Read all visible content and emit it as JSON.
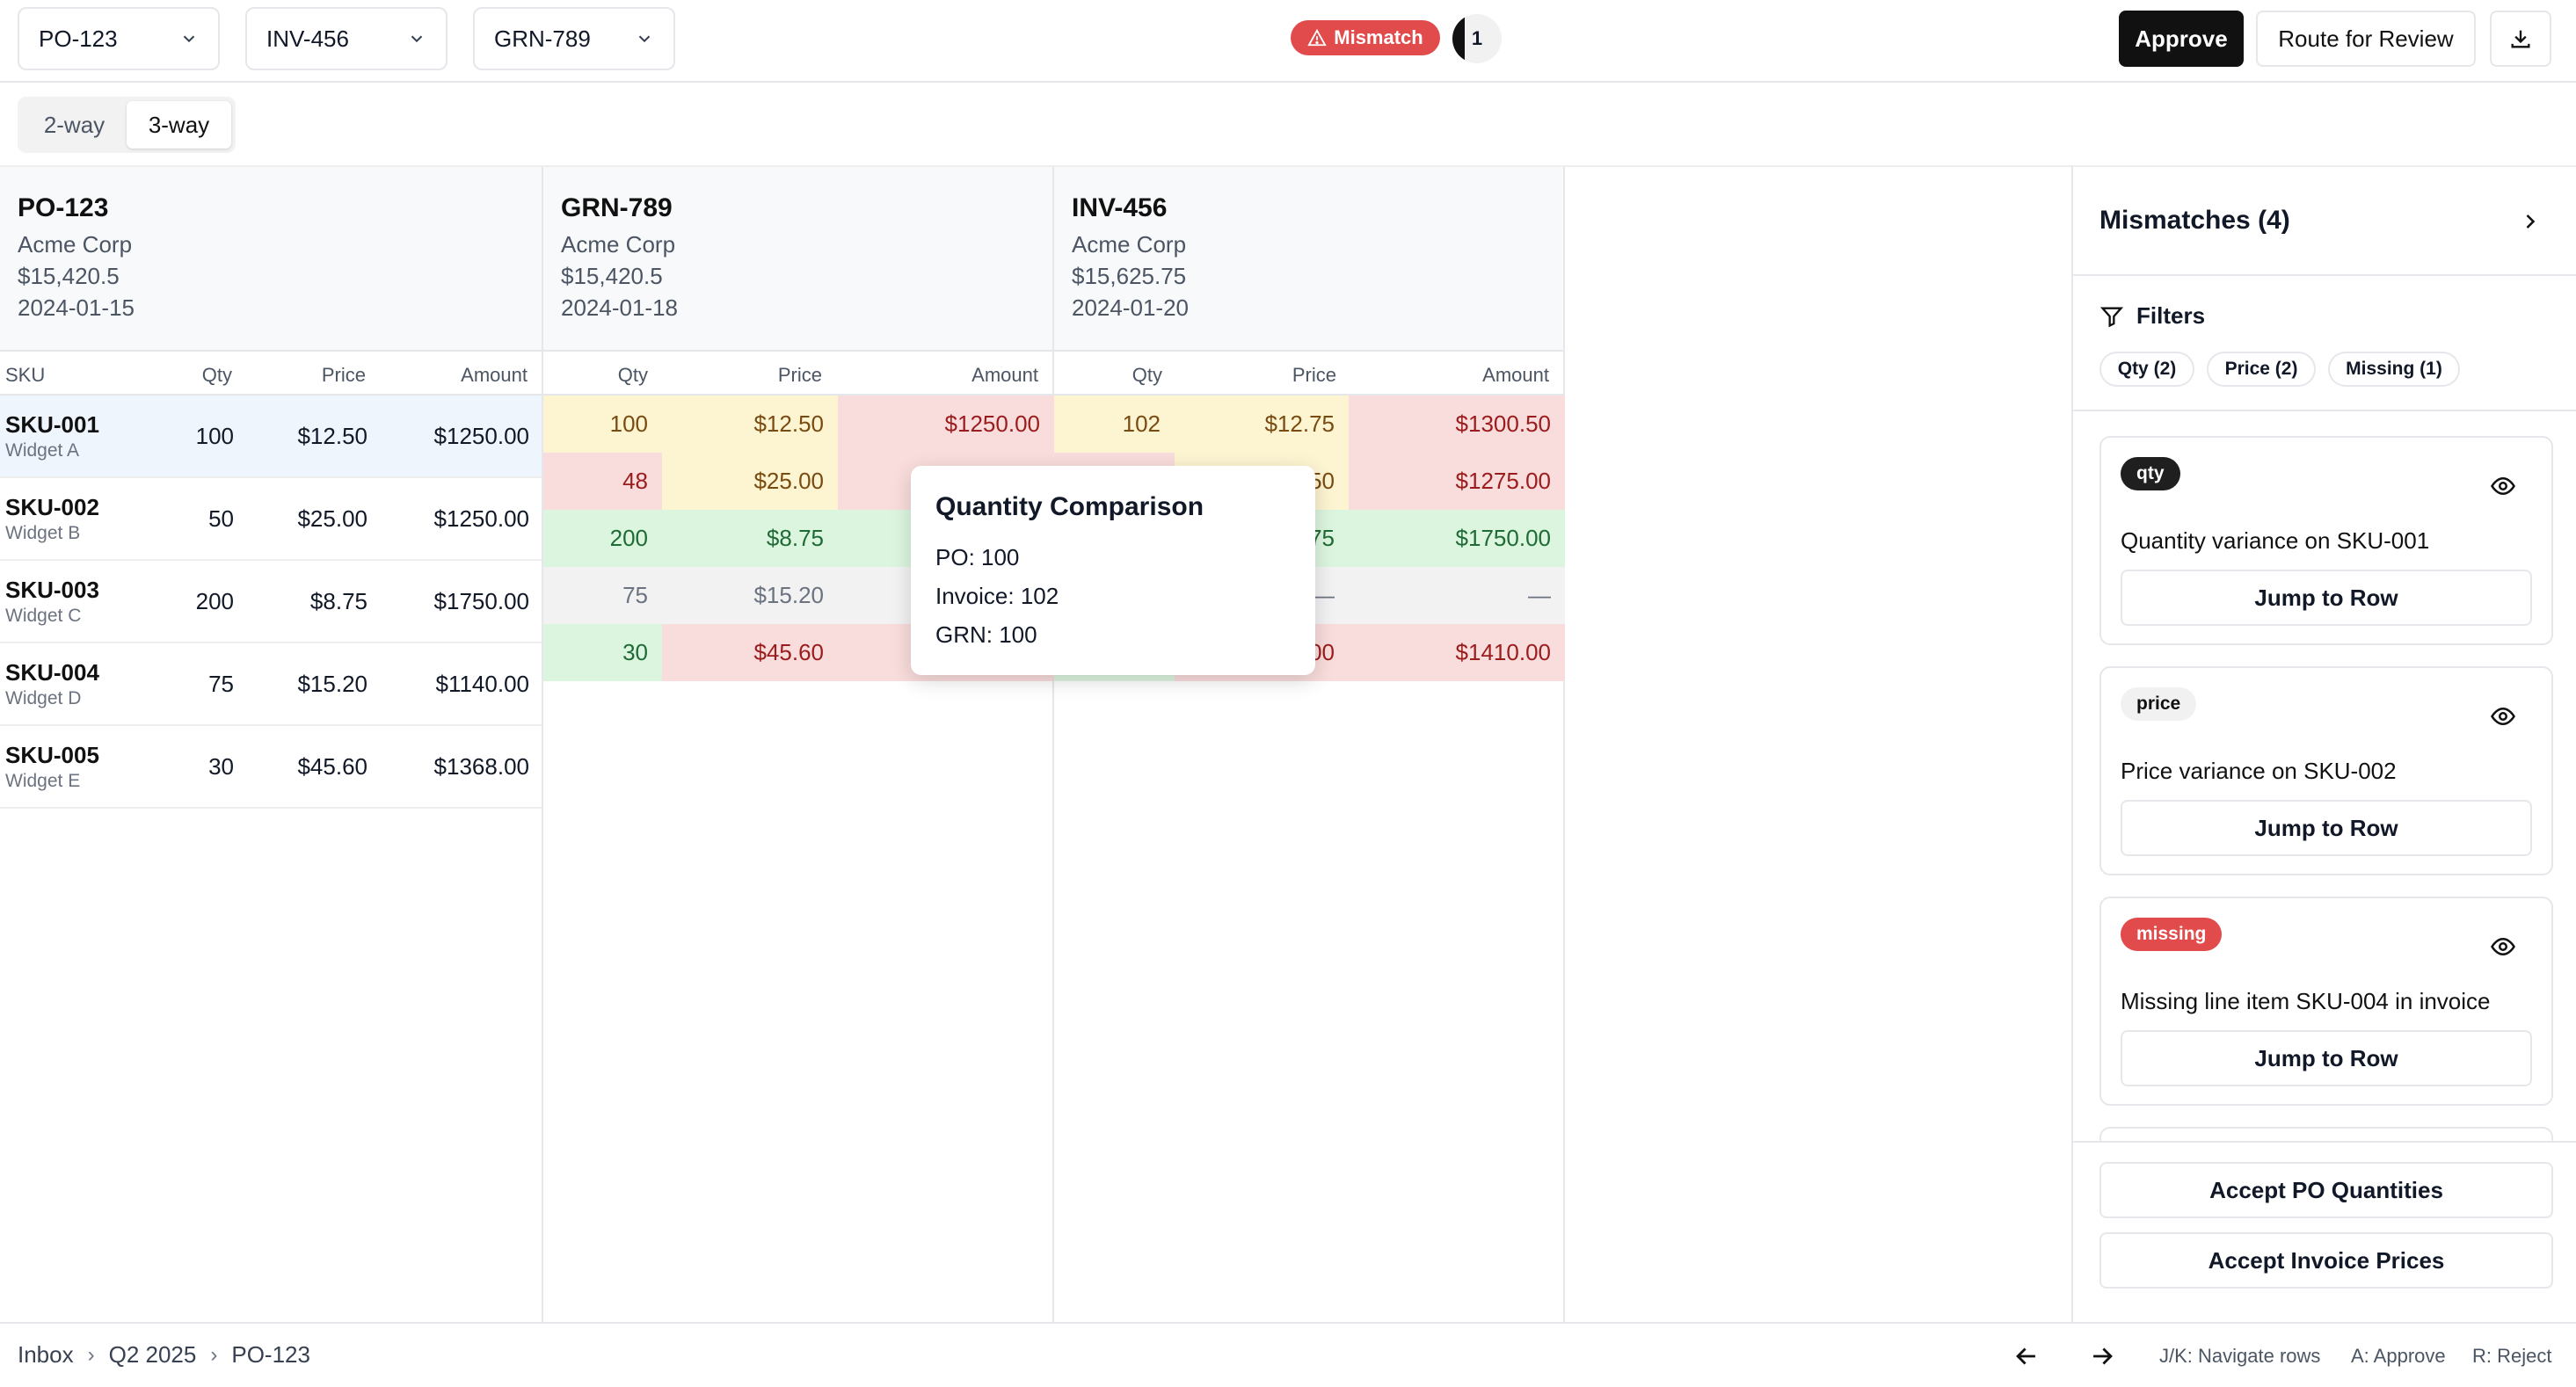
{
  "topbar": {
    "po_select": "PO-123",
    "inv_select": "INV-456",
    "grn_select": "GRN-789",
    "status_badge": "Mismatch",
    "count": "1",
    "approve_label": "Approve",
    "route_label": "Route for Review",
    "download_icon": "download-icon"
  },
  "mode": {
    "options": [
      "2-way",
      "3-way"
    ],
    "active": "3-way"
  },
  "panels": {
    "po": {
      "title": "PO-123",
      "vendor": "Acme Corp",
      "total": "$15,420.5",
      "date": "2024-01-15"
    },
    "grn": {
      "title": "GRN-789",
      "vendor": "Acme Corp",
      "total": "$15,420.5",
      "date": "2024-01-18"
    },
    "inv": {
      "title": "INV-456",
      "vendor": "Acme Corp",
      "total": "$15,625.75",
      "date": "2024-01-20"
    }
  },
  "columns": {
    "sku": "SKU",
    "qty": "Qty",
    "price": "Price",
    "amount": "Amount"
  },
  "po_rows": [
    {
      "sku": "SKU-001",
      "desc": "Widget A",
      "qty": "100",
      "price": "$12.50",
      "amount": "$1250.00"
    },
    {
      "sku": "SKU-002",
      "desc": "Widget B",
      "qty": "50",
      "price": "$25.00",
      "amount": "$1250.00"
    },
    {
      "sku": "SKU-003",
      "desc": "Widget C",
      "qty": "200",
      "price": "$8.75",
      "amount": "$1750.00"
    },
    {
      "sku": "SKU-004",
      "desc": "Widget D",
      "qty": "75",
      "price": "$15.20",
      "amount": "$1140.00"
    },
    {
      "sku": "SKU-005",
      "desc": "Widget E",
      "qty": "30",
      "price": "$45.60",
      "amount": "$1368.00"
    }
  ],
  "grn_rows": [
    {
      "qty": "100",
      "price": "$12.50",
      "amount": "$1250.00"
    },
    {
      "qty": "48",
      "price": "$25.00",
      "amount": ""
    },
    {
      "qty": "200",
      "price": "$8.75",
      "amount": ""
    },
    {
      "qty": "75",
      "price": "$15.20",
      "amount": ""
    },
    {
      "qty": "30",
      "price": "$45.60",
      "amount": ""
    }
  ],
  "inv_rows": [
    {
      "qty": "102",
      "price": "$12.75",
      "amount": "$1300.50"
    },
    {
      "qty": "",
      "price": "50",
      "amount": "$1275.00"
    },
    {
      "qty": "",
      "price": "75",
      "amount": "$1750.00"
    },
    {
      "qty": "",
      "price": "—",
      "amount": "—"
    },
    {
      "qty": "",
      "price": "00",
      "amount": "$1410.00"
    }
  ],
  "tooltip": {
    "title": "Quantity Comparison",
    "po": "PO: 100",
    "invoice": "Invoice: 102",
    "grn": "GRN: 100"
  },
  "sidebar": {
    "title": "Mismatches (4)",
    "filters_label": "Filters",
    "chips": [
      "Qty (2)",
      "Price (2)",
      "Missing (1)"
    ],
    "cards": [
      {
        "tag": "qty",
        "desc": "Quantity variance on SKU-001",
        "jump": "Jump to Row"
      },
      {
        "tag": "price",
        "desc": "Price variance on SKU-002",
        "jump": "Jump to Row"
      },
      {
        "tag": "missing",
        "desc": "Missing line item SKU-004 in invoice",
        "jump": "Jump to Row"
      }
    ],
    "accept_po": "Accept PO Quantities",
    "accept_inv": "Accept Invoice Prices"
  },
  "footer": {
    "breadcrumbs": [
      "Inbox",
      "Q2 2025",
      "PO-123"
    ],
    "hint_nav": "J/K: Navigate rows",
    "hint_approve": "A: Approve",
    "hint_reject": "R: Reject"
  },
  "colors": {
    "mismatch": "#e14b4b",
    "yellow": "#fdf4d2",
    "red": "#f9dcdc",
    "green": "#dcf5df",
    "gray": "#f2f2f3",
    "selected_row": "#eef5fd"
  }
}
